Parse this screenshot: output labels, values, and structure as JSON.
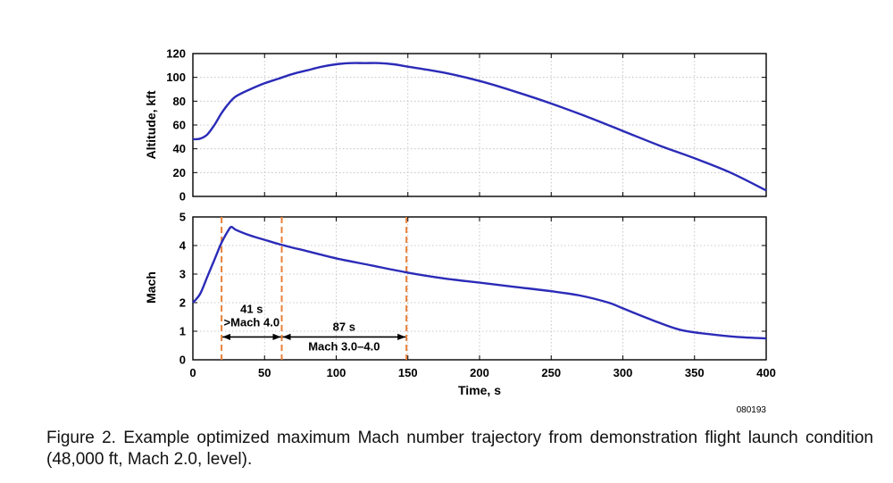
{
  "figure_id": "080193",
  "caption": "Figure 2. Example optimized maximum Mach number trajectory from demonstration flight launch condition (48,000 ft, Mach 2.0, level).",
  "colors": {
    "series": "#2b2bb8",
    "marker": "#e8813a",
    "grid": "#b8b8b8",
    "frame": "#000000"
  },
  "chart_data": [
    {
      "type": "line",
      "panel": "top",
      "title": "",
      "xlabel": "",
      "ylabel": "Altitude, kft",
      "xlim": [
        0,
        400
      ],
      "ylim": [
        0,
        120
      ],
      "yticks": [
        "0",
        "20",
        "40",
        "60",
        "80",
        "100",
        "120"
      ],
      "ytick_values": [
        0,
        20,
        40,
        60,
        80,
        100,
        120
      ],
      "grid": true,
      "series": [
        {
          "name": "Altitude",
          "x": [
            0,
            5,
            10,
            15,
            20,
            25,
            30,
            40,
            50,
            60,
            70,
            80,
            90,
            100,
            110,
            120,
            130,
            140,
            150,
            175,
            200,
            225,
            250,
            275,
            300,
            325,
            350,
            375,
            400
          ],
          "y": [
            48,
            48.5,
            52,
            60,
            70,
            78,
            84,
            90,
            95,
            99,
            103,
            106,
            109,
            111,
            112,
            112,
            112,
            111,
            109,
            104,
            97,
            88,
            78,
            67,
            55,
            43,
            32,
            20,
            5
          ]
        }
      ]
    },
    {
      "type": "line",
      "panel": "bottom",
      "title": "",
      "xlabel": "Time, s",
      "ylabel": "Mach",
      "xlim": [
        0,
        400
      ],
      "ylim": [
        0,
        5
      ],
      "xticks": [
        "0",
        "50",
        "100",
        "150",
        "200",
        "250",
        "300",
        "350",
        "400"
      ],
      "xtick_values": [
        0,
        50,
        100,
        150,
        200,
        250,
        300,
        350,
        400
      ],
      "yticks": [
        "0",
        "1",
        "2",
        "3",
        "4",
        "5"
      ],
      "ytick_values": [
        0,
        1,
        2,
        3,
        4,
        5
      ],
      "grid": true,
      "series": [
        {
          "name": "Mach",
          "x": [
            0,
            5,
            10,
            15,
            20,
            25,
            27,
            30,
            40,
            50,
            60,
            70,
            80,
            100,
            125,
            150,
            175,
            200,
            225,
            250,
            270,
            290,
            300,
            320,
            340,
            360,
            380,
            400
          ],
          "y": [
            2.0,
            2.3,
            2.9,
            3.5,
            4.1,
            4.55,
            4.65,
            4.55,
            4.35,
            4.2,
            4.05,
            3.92,
            3.8,
            3.55,
            3.3,
            3.05,
            2.85,
            2.7,
            2.55,
            2.4,
            2.25,
            2.0,
            1.8,
            1.4,
            1.05,
            0.9,
            0.8,
            0.75
          ]
        }
      ],
      "vlines": [
        20,
        62,
        149
      ],
      "annotations": [
        {
          "label_line1": "41 s",
          "label_line2": ">Mach 4.0",
          "x_start": 20,
          "x_end": 62,
          "y": 0.8
        },
        {
          "label_line1": "87 s",
          "label_line2": "Mach 3.0–4.0",
          "x_start": 62,
          "x_end": 149,
          "y": 0.8
        }
      ]
    }
  ]
}
